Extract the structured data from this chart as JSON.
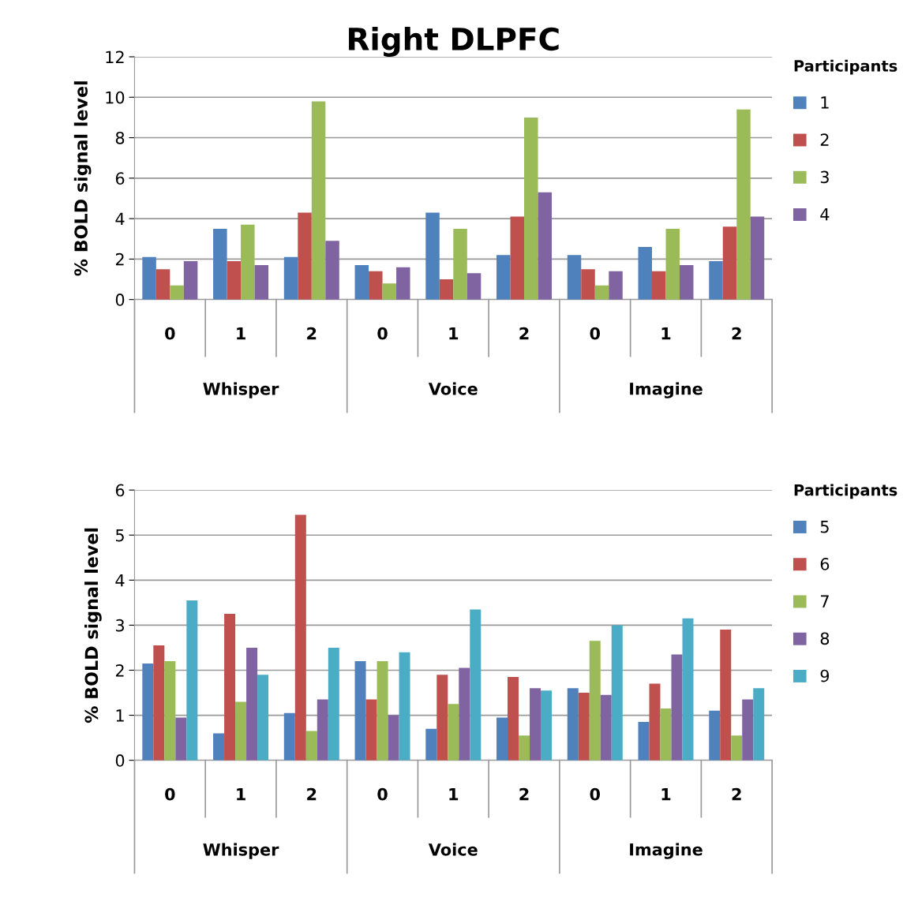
{
  "chart_data": [
    {
      "type": "bar",
      "title": "Right DLPFC",
      "ylabel": "% BOLD signal level",
      "legend_title": "Participants",
      "categories": [
        "0",
        "1",
        "2",
        "0",
        "1",
        "2",
        "0",
        "1",
        "2"
      ],
      "annotations": [
        "Whisper",
        "Voice",
        "Imagine"
      ],
      "series": [
        {
          "name": "1",
          "color": "#4f81bd",
          "values": [
            2.1,
            3.5,
            2.1,
            1.7,
            4.3,
            2.2,
            2.2,
            2.6,
            1.9
          ]
        },
        {
          "name": "2",
          "color": "#c0504d",
          "values": [
            1.5,
            1.9,
            4.3,
            1.4,
            1.0,
            4.1,
            1.5,
            1.4,
            3.6
          ]
        },
        {
          "name": "3",
          "color": "#9bbb59",
          "values": [
            0.7,
            3.7,
            9.8,
            0.8,
            3.5,
            9.0,
            0.7,
            3.5,
            9.4
          ]
        },
        {
          "name": "4",
          "color": "#8064a2",
          "values": [
            1.9,
            1.7,
            2.9,
            1.6,
            1.3,
            5.3,
            1.4,
            1.7,
            4.1
          ]
        }
      ],
      "ylim": [
        0,
        12
      ],
      "yticks": [
        0,
        2,
        4,
        6,
        8,
        10,
        12
      ],
      "grid": "y",
      "legend": "right"
    },
    {
      "type": "bar",
      "ylabel": "% BOLD signal level",
      "legend_title": "Participants",
      "categories": [
        "0",
        "1",
        "2",
        "0",
        "1",
        "2",
        "0",
        "1",
        "2"
      ],
      "annotations": [
        "Whisper",
        "Voice",
        "Imagine"
      ],
      "series": [
        {
          "name": "5",
          "color": "#4f81bd",
          "values": [
            2.15,
            0.6,
            1.05,
            2.2,
            0.7,
            0.95,
            1.6,
            0.85,
            1.1
          ]
        },
        {
          "name": "6",
          "color": "#c0504d",
          "values": [
            2.55,
            3.25,
            5.45,
            1.35,
            1.9,
            1.85,
            1.5,
            1.7,
            2.9
          ]
        },
        {
          "name": "7",
          "color": "#9bbb59",
          "values": [
            2.2,
            1.3,
            0.65,
            2.2,
            1.25,
            0.55,
            2.65,
            1.15,
            0.55
          ]
        },
        {
          "name": "8",
          "color": "#8064a2",
          "values": [
            0.95,
            2.5,
            1.35,
            1.0,
            2.05,
            1.6,
            1.45,
            2.35,
            1.35
          ]
        },
        {
          "name": "9",
          "color": "#4bacc6",
          "values": [
            3.55,
            1.9,
            2.5,
            2.4,
            3.35,
            1.55,
            3.0,
            3.15,
            1.6
          ]
        }
      ],
      "ylim": [
        0,
        6
      ],
      "yticks": [
        0,
        1,
        2,
        3,
        4,
        5,
        6
      ],
      "grid": "y",
      "legend": "right"
    }
  ]
}
